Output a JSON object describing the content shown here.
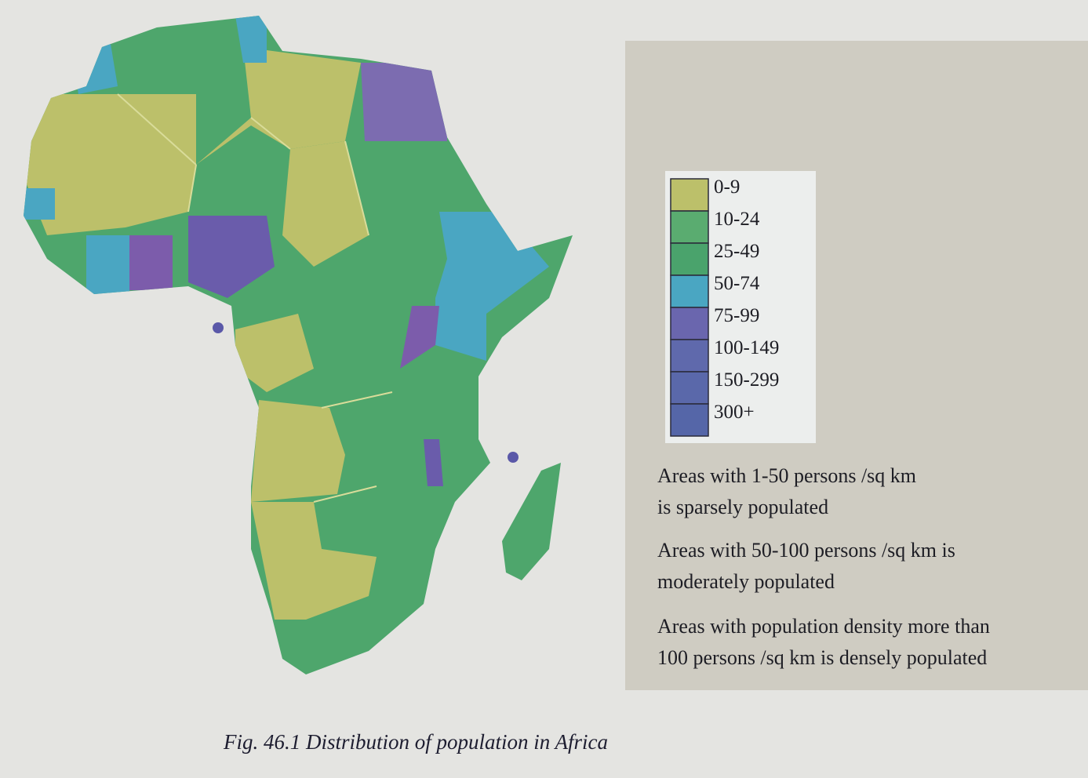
{
  "legend": [
    {
      "label": "0-9",
      "color": "#bcc06a"
    },
    {
      "label": "10-24",
      "color": "#5aac70"
    },
    {
      "label": "25-49",
      "color": "#4aa36c"
    },
    {
      "label": "50-74",
      "color": "#4aa6c2"
    },
    {
      "label": "75-99",
      "color": "#6a66ae"
    },
    {
      "label": "100-149",
      "color": "#5f69ac"
    },
    {
      "label": "150-299",
      "color": "#5a68aa"
    },
    {
      "label": "300+",
      "color": "#5566a8"
    }
  ],
  "notes": [
    [
      "Areas with 1-50 persons /sq km",
      "is sparsely populated"
    ],
    [
      "Areas with 50-100 persons /sq km is",
      "moderately populated"
    ],
    [
      "Areas with population density more than",
      "100 persons /sq km is densely populated"
    ]
  ],
  "caption": "Fig. 46.1 Distribution of population in Africa"
}
